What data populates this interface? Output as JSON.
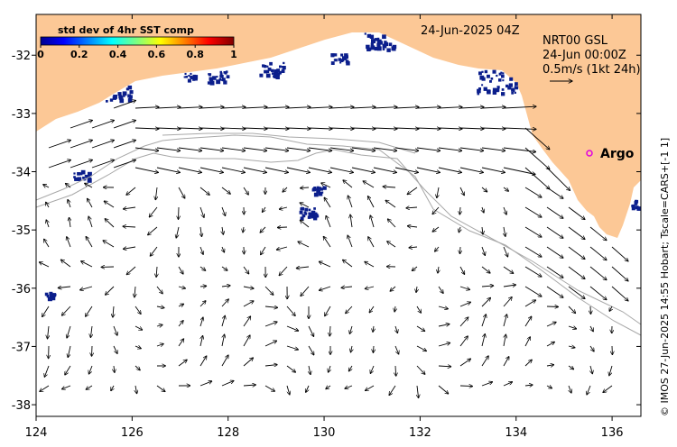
{
  "map": {
    "date_label": "24-Jun-2025 04Z",
    "product_label": "NRT00 GSL",
    "product_time": "24-Jun 00:00Z",
    "scale_label": "0.5m/s (1kt 24h)",
    "argo_label": "Argo",
    "credit": "© IMOS 27-Jun-2025 14:55 Hobart; Tscale=CARS+[-1 1]",
    "lon_range": [
      124,
      136.6
    ],
    "lat_range": [
      -38.2,
      -31.3
    ],
    "x_ticks": [
      "124",
      "126",
      "128",
      "130",
      "132",
      "134",
      "136"
    ],
    "y_ticks": [
      "-32",
      "-33",
      "-34",
      "-35",
      "-36",
      "-37",
      "-38"
    ]
  },
  "colorbar": {
    "title": "std dev of 4hr SST comp",
    "ticks": [
      "0",
      "0.2",
      "0.4",
      "0.6",
      "0.8",
      "1"
    ]
  },
  "colors": {
    "land": "#fcc896",
    "ocean": "#ffffff",
    "sst_patch": "#0b1e8c",
    "argo": "#e000e0",
    "isobath": "#a8a8a8"
  }
}
